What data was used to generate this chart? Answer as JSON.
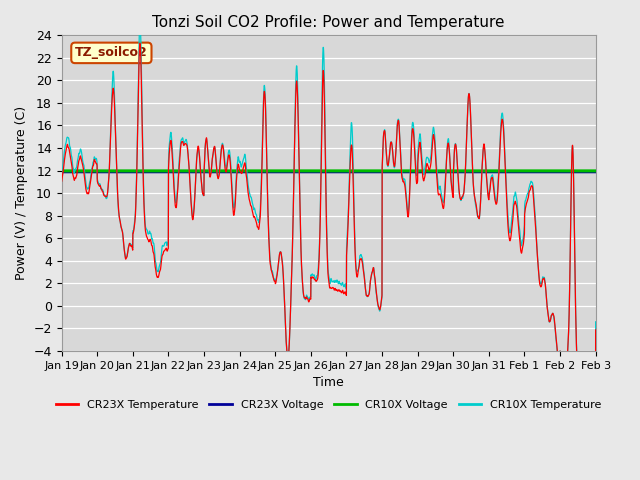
{
  "title": "Tonzi Soil CO2 Profile: Power and Temperature",
  "ylabel": "Power (V) / Temperature (C)",
  "xlabel": "Time",
  "ylim": [
    -4,
    24
  ],
  "yticks": [
    -4,
    -2,
    0,
    2,
    4,
    6,
    8,
    10,
    12,
    14,
    16,
    18,
    20,
    22,
    24
  ],
  "xtick_labels": [
    "Jan 19",
    "Jan 20",
    "Jan 21",
    "Jan 22",
    "Jan 23",
    "Jan 24",
    "Jan 25",
    "Jan 26",
    "Jan 27",
    "Jan 28",
    "Jan 29",
    "Jan 30",
    "Jan 31",
    "Feb 1",
    "Feb 2",
    "Feb 3"
  ],
  "annotation_text": "TZ_soilco2",
  "annotation_facecolor": "#ffffcc",
  "annotation_edgecolor": "#cc4400",
  "cr23x_voltage_value": 11.85,
  "cr10x_voltage_value": 11.97,
  "cr23x_temp_color": "#ff0000",
  "cr23x_volt_color": "#000099",
  "cr10x_volt_color": "#00bb00",
  "cr10x_temp_color": "#00cccc",
  "bg_color": "#e8e8e8",
  "plot_bg_color": "#d8d8d8",
  "legend_labels": [
    "CR23X Temperature",
    "CR23X Voltage",
    "CR10X Voltage",
    "CR10X Temperature"
  ],
  "legend_colors": [
    "#ff0000",
    "#000099",
    "#00bb00",
    "#00cccc"
  ],
  "figsize": [
    6.4,
    4.8
  ],
  "dpi": 100
}
